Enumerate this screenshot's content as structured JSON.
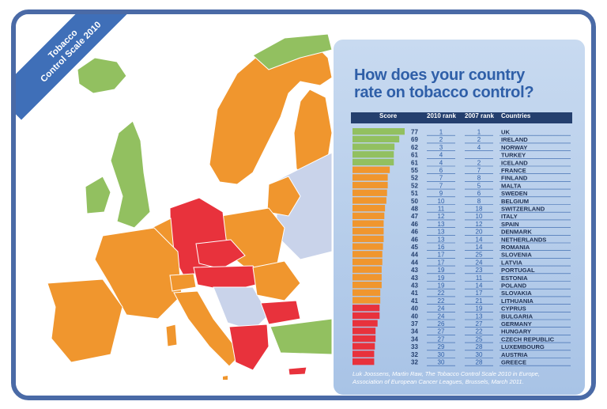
{
  "ribbon": {
    "line1": "Tobacco",
    "line2": "Control Scale 2010"
  },
  "title": {
    "line1": "How does your country",
    "line2": "rate on tobacco control?"
  },
  "headers": {
    "score": "Score",
    "rank2010": "2010 rank",
    "rank2007": "2007 rank",
    "countries": "Countries"
  },
  "source": {
    "line1": "Luk Joossens, Martin Raw, The Tobacco Control Scale 2010 in Europe,",
    "line2": "Association of European Cancer Leagues, Brussels, March 2011."
  },
  "colors": {
    "green": "#92c060",
    "orange": "#f0962e",
    "red": "#e8323c",
    "frame": "#4a6aa6",
    "rank_text": "#2f5fa8"
  },
  "chart_data": {
    "type": "bar",
    "title": "How does your country rate on tobacco control?",
    "categories": [
      "UK",
      "IRELAND",
      "NORWAY",
      "TURKEY",
      "ICELAND",
      "FRANCE",
      "FINLAND",
      "MALTA",
      "SWEDEN",
      "BELGIUM",
      "SWITZERLAND",
      "ITALY",
      "SPAIN",
      "DENMARK",
      "NETHERLANDS",
      "ROMANIA",
      "SLOVENIA",
      "LATVIA",
      "PORTUGAL",
      "ESTONIA",
      "POLAND",
      "SLOVAKIA",
      "LITHUANIA",
      "CYPRUS",
      "BULGARIA",
      "GERMANY",
      "HUNGARY",
      "CZECH REPUBLIC",
      "LUXEMBOURG",
      "AUSTRIA",
      "GREECE"
    ],
    "series": [
      {
        "name": "Score",
        "values": [
          77,
          69,
          62,
          61,
          61,
          55,
          52,
          52,
          51,
          50,
          48,
          47,
          46,
          46,
          46,
          45,
          44,
          44,
          43,
          43,
          43,
          41,
          41,
          40,
          40,
          37,
          34,
          34,
          33,
          32,
          32
        ]
      },
      {
        "name": "2010 rank",
        "values": [
          1,
          2,
          3,
          4,
          4,
          6,
          7,
          7,
          9,
          10,
          11,
          12,
          13,
          13,
          13,
          16,
          17,
          17,
          19,
          19,
          19,
          22,
          22,
          24,
          24,
          26,
          27,
          27,
          29,
          30,
          30
        ]
      },
      {
        "name": "2007 rank",
        "values": [
          "1",
          "2",
          "4",
          "",
          "2",
          "7",
          "8",
          "5",
          "6",
          "8",
          "18",
          "10",
          "12",
          "20",
          "14",
          "14",
          "25",
          "24",
          "23",
          "11",
          "14",
          "17",
          "21",
          "19",
          "13",
          "27",
          "22",
          "25",
          "28",
          "30",
          "28"
        ]
      }
    ],
    "groups": [
      "green",
      "green",
      "green",
      "green",
      "green",
      "orange",
      "orange",
      "orange",
      "orange",
      "orange",
      "orange",
      "orange",
      "orange",
      "orange",
      "orange",
      "orange",
      "orange",
      "orange",
      "orange",
      "orange",
      "orange",
      "orange",
      "orange",
      "red",
      "red",
      "red",
      "red",
      "red",
      "red",
      "red",
      "red"
    ],
    "legend": "none"
  }
}
